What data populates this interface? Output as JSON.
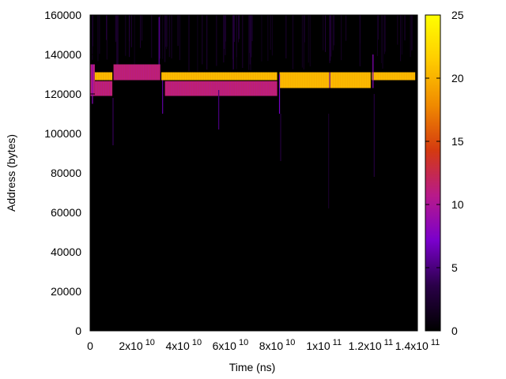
{
  "chart_data": {
    "type": "heatmap",
    "title": "",
    "xlabel": "Time (ns)",
    "ylabel": "Address (bytes)",
    "xlim": [
      0,
      140000000000
    ],
    "ylim": [
      0,
      160000
    ],
    "x_ticks": [
      {
        "value": 0,
        "mantissa": "0",
        "exp": ""
      },
      {
        "value": 20000000000,
        "mantissa": "2x10",
        "exp": "10"
      },
      {
        "value": 40000000000,
        "mantissa": "4x10",
        "exp": "10"
      },
      {
        "value": 60000000000,
        "mantissa": "6x10",
        "exp": "10"
      },
      {
        "value": 80000000000,
        "mantissa": "8x10",
        "exp": "10"
      },
      {
        "value": 100000000000,
        "mantissa": "1x10",
        "exp": "11"
      },
      {
        "value": 120000000000,
        "mantissa": "1.2x10",
        "exp": "11"
      },
      {
        "value": 140000000000,
        "mantissa": "1.4x10",
        "exp": "11"
      }
    ],
    "y_ticks": [
      {
        "value": 0,
        "label": "0"
      },
      {
        "value": 20000,
        "label": "20000"
      },
      {
        "value": 40000,
        "label": "40000"
      },
      {
        "value": 60000,
        "label": "60000"
      },
      {
        "value": 80000,
        "label": "80000"
      },
      {
        "value": 100000,
        "label": "100000"
      },
      {
        "value": 120000,
        "label": "120000"
      },
      {
        "value": 140000,
        "label": "140000"
      },
      {
        "value": 160000,
        "label": "160000"
      }
    ],
    "data_xmax": 139000000000,
    "colorbar": {
      "min": 0,
      "max": 25,
      "ticks": [
        {
          "value": 0,
          "label": "0"
        },
        {
          "value": 5,
          "label": "5"
        },
        {
          "value": 10,
          "label": "10"
        },
        {
          "value": 15,
          "label": "15"
        },
        {
          "value": 20,
          "label": "20"
        },
        {
          "value": 25,
          "label": "25"
        }
      ],
      "palette": [
        "#000000",
        "#2a0048",
        "#7a00cc",
        "#b81a8a",
        "#d43a10",
        "#f08a00",
        "#ffcc00",
        "#ffff00"
      ]
    },
    "background_value": 0,
    "regions": [
      {
        "x0": 0,
        "x1": 2000000000,
        "y0": 119000,
        "y1": 135000,
        "value": 11
      },
      {
        "x0": 2000000000,
        "x1": 9500000000,
        "y0": 127000,
        "y1": 131000,
        "value": 20
      },
      {
        "x0": 2000000000,
        "x1": 9500000000,
        "y0": 119000,
        "y1": 126500,
        "value": 11
      },
      {
        "x0": 10000000000,
        "x1": 30000000000,
        "y0": 127000,
        "y1": 135000,
        "value": 11
      },
      {
        "x0": 30500000000,
        "x1": 80000000000,
        "y0": 127000,
        "y1": 131000,
        "value": 20
      },
      {
        "x0": 32000000000,
        "x1": 80000000000,
        "y0": 119000,
        "y1": 126500,
        "value": 11
      },
      {
        "x0": 81000000000,
        "x1": 120000000000,
        "y0": 123000,
        "y1": 131000,
        "value": 20
      },
      {
        "x0": 120500000000,
        "x1": 139000000000,
        "y0": 127000,
        "y1": 131000,
        "value": 20
      }
    ],
    "spikes": [
      {
        "x": 1000000000,
        "y0": 115000,
        "y1": 135000,
        "value": 8
      },
      {
        "x": 9800000000,
        "y0": 94000,
        "y1": 118000,
        "value": 4
      },
      {
        "x": 29500000000,
        "y0": 135000,
        "y1": 159000,
        "value": 6
      },
      {
        "x": 31000000000,
        "y0": 110000,
        "y1": 127000,
        "value": 6
      },
      {
        "x": 55000000000,
        "y0": 102000,
        "y1": 122000,
        "value": 5
      },
      {
        "x": 81000000000,
        "y0": 110000,
        "y1": 130000,
        "value": 7
      },
      {
        "x": 81500000000,
        "y0": 86000,
        "y1": 110000,
        "value": 3
      },
      {
        "x": 102000000000,
        "y0": 62000,
        "y1": 110000,
        "value": 2
      },
      {
        "x": 102500000000,
        "y0": 123000,
        "y1": 131000,
        "value": 6
      },
      {
        "x": 121000000000,
        "y0": 123000,
        "y1": 140000,
        "value": 8
      },
      {
        "x": 121500000000,
        "y0": 78000,
        "y1": 120000,
        "value": 3
      }
    ],
    "top_noise": {
      "y0": 131000,
      "y1": 160000,
      "value": 2
    }
  }
}
